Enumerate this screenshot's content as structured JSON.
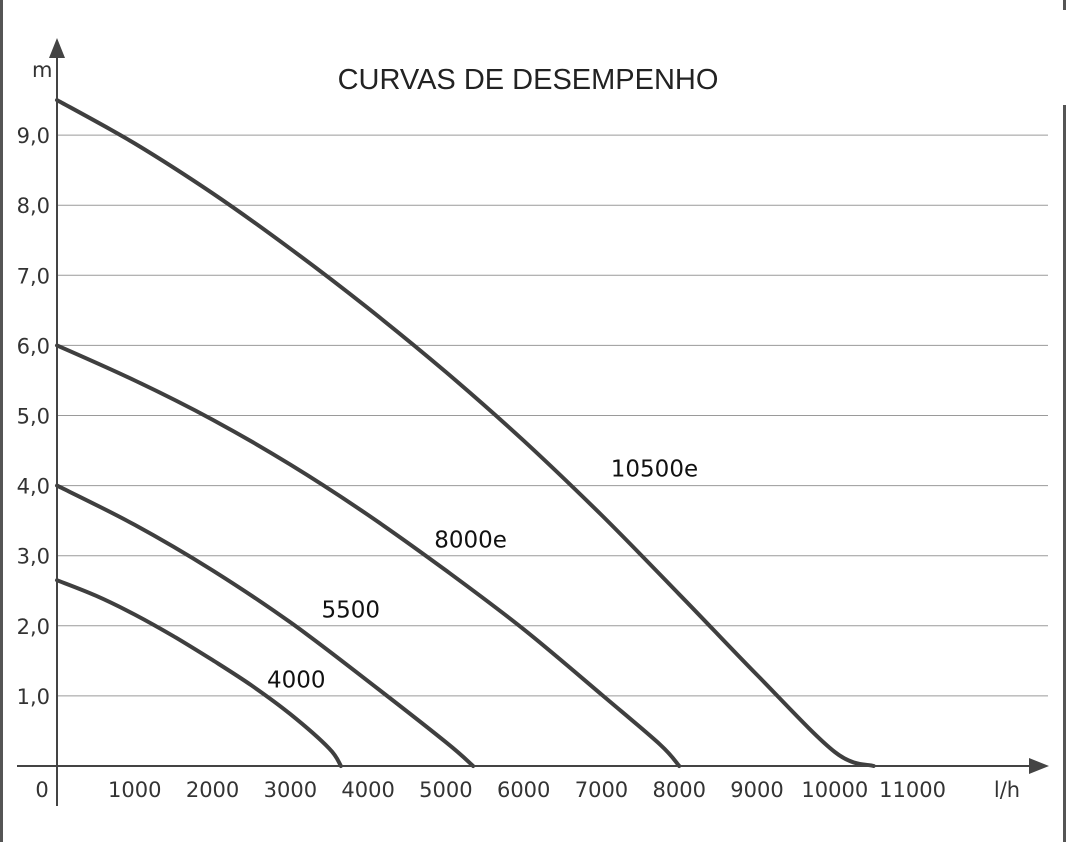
{
  "chart_data": {
    "type": "line",
    "title": "CURVAS DE DESEMPENHO",
    "xlabel": "l/h",
    "ylabel": "m",
    "origin_label": "0",
    "xlim": [
      0,
      12400
    ],
    "ylim": [
      0,
      9.5
    ],
    "x_ticks": [
      1000,
      2000,
      3000,
      4000,
      5000,
      6000,
      7000,
      8000,
      9000,
      10000,
      11000
    ],
    "x_tick_labels": [
      "1000",
      "2000",
      "3000",
      "4000",
      "5000",
      "6000",
      "7000",
      "8000",
      "9000",
      "10000",
      "11000"
    ],
    "y_ticks": [
      1,
      2,
      3,
      4,
      5,
      6,
      7,
      8,
      9
    ],
    "y_tick_labels": [
      "1,0",
      "2,0",
      "3,0",
      "4,0",
      "5,0",
      "6,0",
      "7,0",
      "8,0",
      "9,0"
    ],
    "grid": true,
    "series": [
      {
        "name": "4000",
        "x": [
          0,
          500,
          1000,
          1500,
          2000,
          2500,
          3000,
          3500,
          3650
        ],
        "y": [
          2.65,
          2.43,
          2.16,
          1.85,
          1.51,
          1.15,
          0.74,
          0.25,
          0.0
        ]
      },
      {
        "name": "5500",
        "x": [
          0,
          1000,
          2000,
          3000,
          4000,
          5000,
          5350
        ],
        "y": [
          4.0,
          3.44,
          2.79,
          2.05,
          1.21,
          0.34,
          0.0
        ]
      },
      {
        "name": "8000e",
        "x": [
          0,
          1000,
          2000,
          3000,
          4000,
          5000,
          6000,
          7000,
          7750,
          8000
        ],
        "y": [
          6.0,
          5.5,
          4.94,
          4.3,
          3.58,
          2.79,
          1.95,
          1.02,
          0.31,
          0.0
        ]
      },
      {
        "name": "10500e",
        "x": [
          0,
          1000,
          2000,
          3000,
          4000,
          5000,
          6000,
          7000,
          8000,
          9000,
          10000,
          10500
        ],
        "y": [
          9.5,
          8.88,
          8.17,
          7.38,
          6.53,
          5.62,
          4.64,
          3.58,
          2.45,
          1.3,
          0.2,
          0.0
        ]
      }
    ]
  }
}
